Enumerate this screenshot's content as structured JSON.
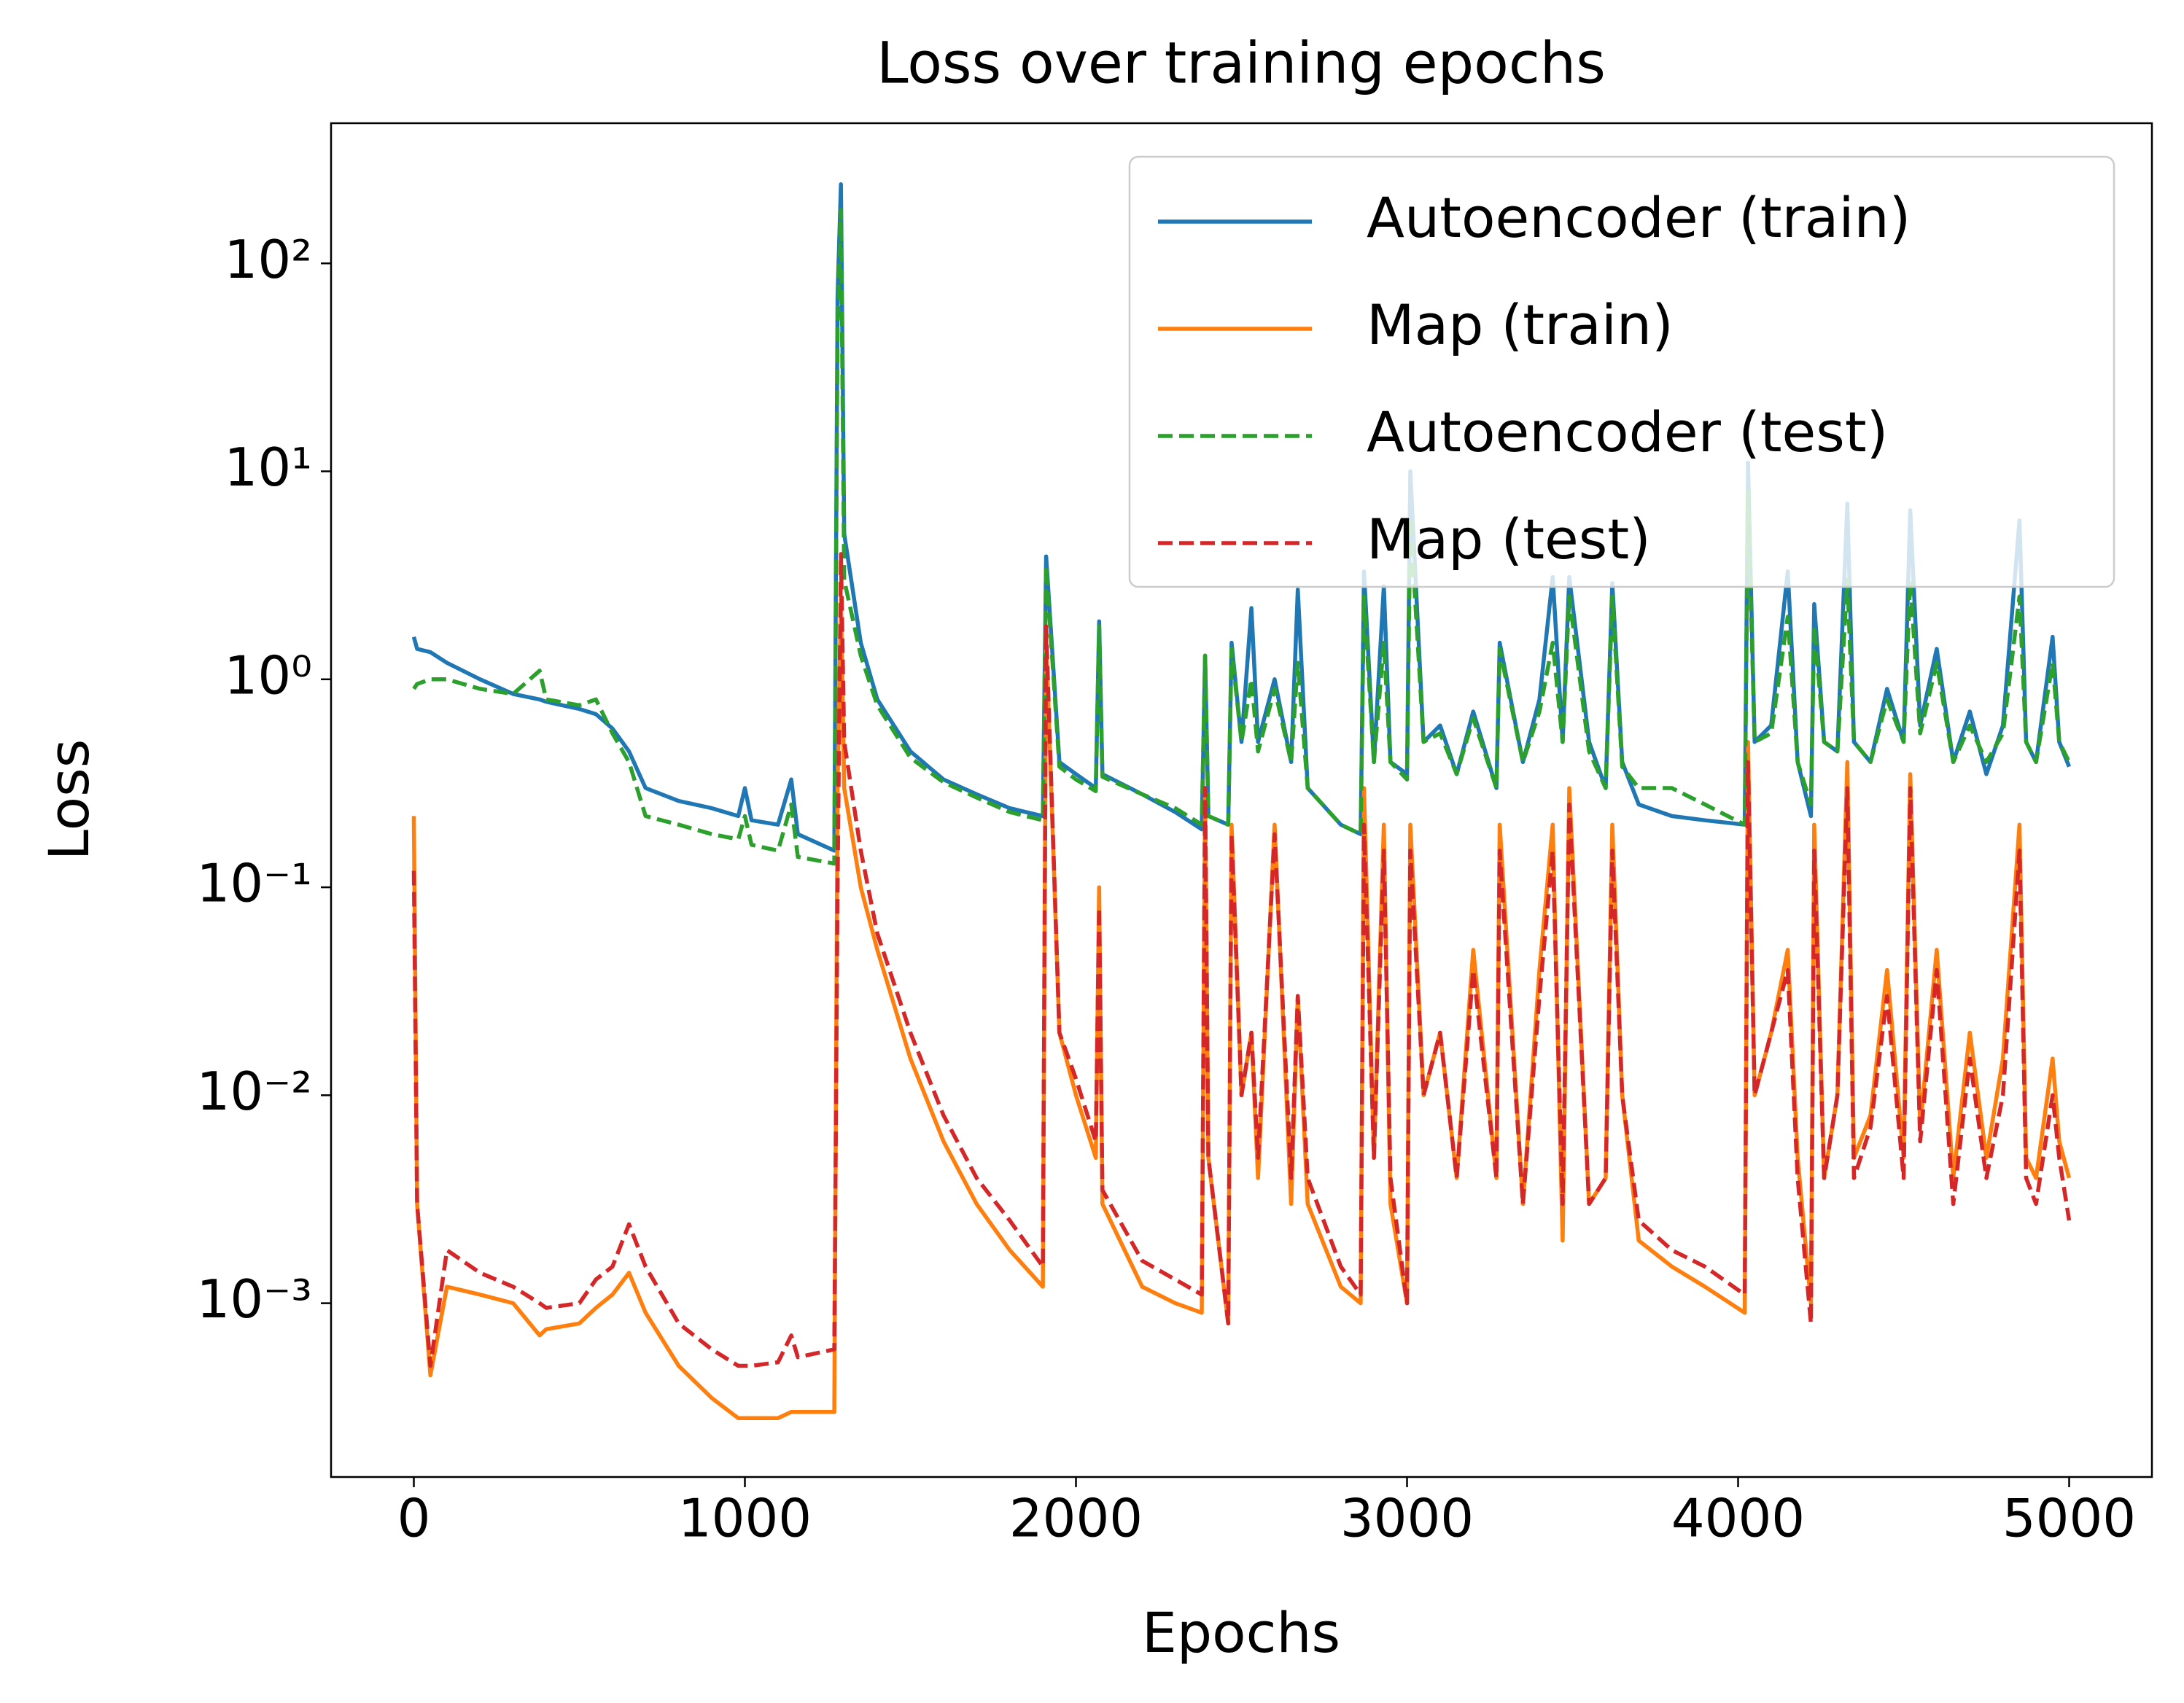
{
  "chart_data": {
    "type": "line",
    "title": "Loss over training epochs",
    "xlabel": "Epochs",
    "ylabel": "Loss",
    "yscale": "log",
    "legend": "upper right",
    "xlim": [
      -250,
      5250
    ],
    "ylim": [
      0.000146,
      472
    ],
    "xticks": [
      0,
      1000,
      2000,
      3000,
      4000,
      5000
    ],
    "yticks": [
      {
        "value": 0.001,
        "label": "10⁻³"
      },
      {
        "value": 0.01,
        "label": "10⁻²"
      },
      {
        "value": 0.1,
        "label": "10⁻¹"
      },
      {
        "value": 1,
        "label": "10⁰"
      },
      {
        "value": 10,
        "label": "10¹"
      },
      {
        "value": 100,
        "label": "10²"
      }
    ],
    "x": [
      0,
      10,
      50,
      100,
      200,
      300,
      380,
      400,
      500,
      550,
      600,
      650,
      700,
      800,
      900,
      980,
      1000,
      1020,
      1100,
      1140,
      1160,
      1270,
      1280,
      1290,
      1300,
      1350,
      1400,
      1500,
      1600,
      1700,
      1800,
      1900,
      1910,
      1950,
      2000,
      2060,
      2070,
      2080,
      2200,
      2300,
      2380,
      2390,
      2400,
      2460,
      2470,
      2500,
      2530,
      2550,
      2600,
      2650,
      2670,
      2700,
      2800,
      2860,
      2870,
      2900,
      2930,
      2950,
      3000,
      3010,
      3050,
      3100,
      3150,
      3200,
      3270,
      3280,
      3350,
      3400,
      3440,
      3470,
      3490,
      3550,
      3600,
      3620,
      3650,
      3700,
      3800,
      3900,
      4020,
      4030,
      4050,
      4100,
      4150,
      4180,
      4220,
      4230,
      4260,
      4300,
      4330,
      4350,
      4400,
      4450,
      4500,
      4520,
      4550,
      4600,
      4650,
      4700,
      4750,
      4800,
      4850,
      4870,
      4900,
      4950,
      4970,
      5000
    ],
    "series": [
      {
        "name": "Autoencoder (train)",
        "color": "#1f77b4",
        "linestyle": "solid",
        "values": [
          1.6,
          1.4,
          1.35,
          1.2,
          1.0,
          0.85,
          0.8,
          0.78,
          0.72,
          0.68,
          0.58,
          0.45,
          0.3,
          0.26,
          0.24,
          0.22,
          0.3,
          0.21,
          0.2,
          0.33,
          0.18,
          0.15,
          70,
          240,
          5,
          1.5,
          0.8,
          0.45,
          0.33,
          0.28,
          0.24,
          0.22,
          3.9,
          0.4,
          0.35,
          0.3,
          1.9,
          0.35,
          0.28,
          0.23,
          0.19,
          1.3,
          0.22,
          0.2,
          1.5,
          0.5,
          2.2,
          0.5,
          1.0,
          0.4,
          2.7,
          0.3,
          0.2,
          0.18,
          3.3,
          0.4,
          2.8,
          0.4,
          0.35,
          10,
          0.5,
          0.6,
          0.35,
          0.7,
          0.3,
          1.5,
          0.4,
          0.8,
          3.1,
          0.5,
          3.1,
          0.5,
          0.3,
          2.9,
          0.4,
          0.25,
          0.22,
          0.21,
          0.2,
          11,
          0.5,
          0.6,
          3.3,
          0.4,
          0.22,
          2.3,
          0.5,
          0.45,
          7,
          0.5,
          0.4,
          0.9,
          0.5,
          6.5,
          0.6,
          1.4,
          0.4,
          0.7,
          0.35,
          0.6,
          5.8,
          0.5,
          0.4,
          1.6,
          0.5,
          0.38
        ]
      },
      {
        "name": "Map (train)",
        "color": "#ff7f0e",
        "linestyle": "solid",
        "values": [
          0.22,
          0.003,
          0.00045,
          0.0012,
          0.0011,
          0.001,
          0.0007,
          0.00075,
          0.0008,
          0.00095,
          0.0011,
          0.0014,
          0.0009,
          0.0005,
          0.00035,
          0.00028,
          0.00028,
          0.00028,
          0.00028,
          0.0003,
          0.0003,
          0.0003,
          0.3,
          2.5,
          0.3,
          0.1,
          0.05,
          0.015,
          0.006,
          0.003,
          0.0018,
          0.0012,
          1.6,
          0.02,
          0.01,
          0.005,
          0.1,
          0.003,
          0.0012,
          0.001,
          0.0009,
          0.3,
          0.005,
          0.0008,
          0.2,
          0.01,
          0.02,
          0.004,
          0.2,
          0.003,
          0.03,
          0.003,
          0.0012,
          0.001,
          0.3,
          0.005,
          0.2,
          0.003,
          0.001,
          0.2,
          0.01,
          0.02,
          0.004,
          0.05,
          0.004,
          0.2,
          0.003,
          0.04,
          0.2,
          0.002,
          0.3,
          0.003,
          0.004,
          0.2,
          0.01,
          0.002,
          0.0015,
          0.0012,
          0.0009,
          0.5,
          0.01,
          0.02,
          0.05,
          0.005,
          0.001,
          0.2,
          0.004,
          0.01,
          0.4,
          0.005,
          0.008,
          0.04,
          0.005,
          0.35,
          0.007,
          0.05,
          0.004,
          0.02,
          0.005,
          0.015,
          0.2,
          0.005,
          0.004,
          0.015,
          0.006,
          0.004
        ]
      },
      {
        "name": "Autoencoder (test)",
        "color": "#2ca02c",
        "linestyle": "dashed",
        "values": [
          0.9,
          0.95,
          1.0,
          1.0,
          0.9,
          0.85,
          1.1,
          0.8,
          0.75,
          0.8,
          0.55,
          0.4,
          0.22,
          0.2,
          0.18,
          0.17,
          0.22,
          0.16,
          0.15,
          0.25,
          0.14,
          0.13,
          50,
          180,
          3,
          1.3,
          0.75,
          0.42,
          0.32,
          0.27,
          0.23,
          0.21,
          3.5,
          0.38,
          0.33,
          0.29,
          1.8,
          0.34,
          0.28,
          0.24,
          0.2,
          1.3,
          0.22,
          0.2,
          1.4,
          0.5,
          1.0,
          0.45,
          0.9,
          0.4,
          1.2,
          0.3,
          0.2,
          0.18,
          2.5,
          0.4,
          1.5,
          0.4,
          0.33,
          6,
          0.5,
          0.55,
          0.35,
          0.65,
          0.3,
          1.4,
          0.4,
          0.7,
          1.5,
          0.5,
          2.5,
          0.45,
          0.3,
          2.5,
          0.38,
          0.3,
          0.3,
          0.25,
          0.2,
          8,
          0.5,
          0.55,
          2.0,
          0.4,
          0.25,
          1.8,
          0.5,
          0.45,
          3,
          0.5,
          0.4,
          0.8,
          0.5,
          3,
          0.55,
          1.2,
          0.4,
          0.6,
          0.4,
          0.55,
          2.5,
          0.5,
          0.4,
          1.2,
          0.5,
          0.4
        ]
      },
      {
        "name": "Map (test)",
        "color": "#d62728",
        "linestyle": "dashed",
        "values": [
          0.12,
          0.003,
          0.0005,
          0.0018,
          0.0014,
          0.0012,
          0.001,
          0.00095,
          0.001,
          0.0013,
          0.0015,
          0.0024,
          0.0015,
          0.0008,
          0.0006,
          0.0005,
          0.0005,
          0.0005,
          0.00052,
          0.0007,
          0.00055,
          0.0006,
          0.1,
          4,
          0.5,
          0.15,
          0.06,
          0.02,
          0.008,
          0.004,
          0.0025,
          0.0015,
          1.8,
          0.02,
          0.012,
          0.006,
          0.08,
          0.0035,
          0.0016,
          0.0013,
          0.0011,
          0.3,
          0.005,
          0.0008,
          0.18,
          0.01,
          0.02,
          0.005,
          0.18,
          0.004,
          0.03,
          0.004,
          0.0015,
          0.0011,
          0.2,
          0.005,
          0.15,
          0.004,
          0.001,
          0.15,
          0.01,
          0.02,
          0.004,
          0.04,
          0.004,
          0.15,
          0.003,
          0.03,
          0.15,
          0.003,
          0.25,
          0.003,
          0.004,
          0.15,
          0.01,
          0.0025,
          0.0018,
          0.0015,
          0.0011,
          0.4,
          0.01,
          0.02,
          0.04,
          0.004,
          0.0008,
          0.15,
          0.004,
          0.01,
          0.3,
          0.004,
          0.007,
          0.03,
          0.004,
          0.3,
          0.006,
          0.04,
          0.003,
          0.015,
          0.004,
          0.01,
          0.15,
          0.004,
          0.003,
          0.01,
          0.005,
          0.0025
        ]
      }
    ]
  }
}
